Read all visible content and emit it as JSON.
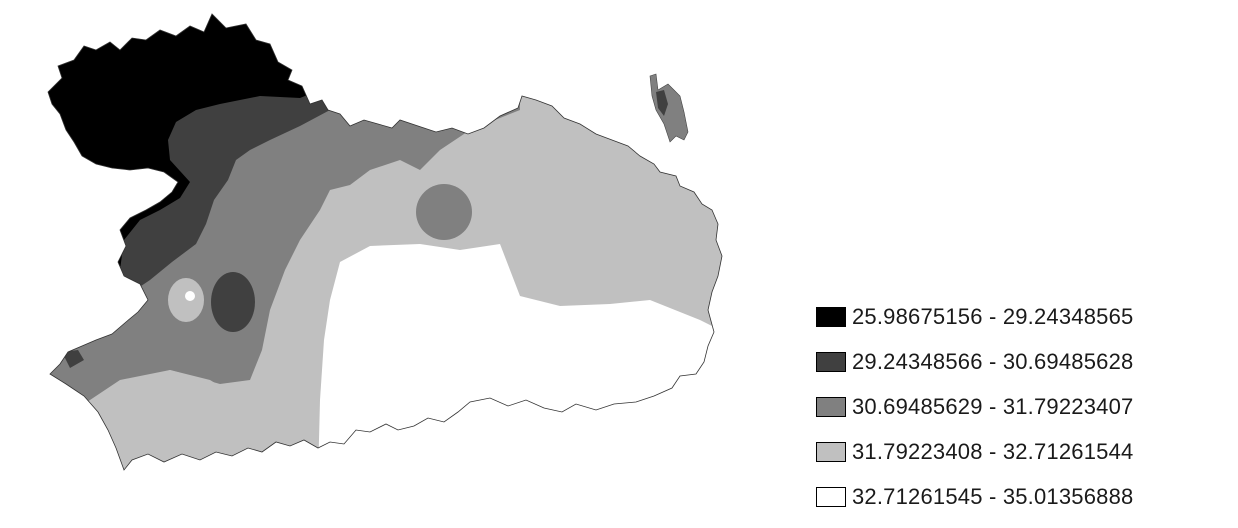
{
  "legend": {
    "classes": [
      {
        "label": "25.98675156 - 29.24348565",
        "color": "#000000"
      },
      {
        "label": "29.24348566 - 30.69485628",
        "color": "#404040"
      },
      {
        "label": "30.69485629 - 31.79223407",
        "color": "#808080"
      },
      {
        "label": "31.79223408 - 32.71261544",
        "color": "#c0c0c0"
      },
      {
        "label": "32.71261545 - 35.01356888",
        "color": "#ffffff"
      }
    ]
  }
}
